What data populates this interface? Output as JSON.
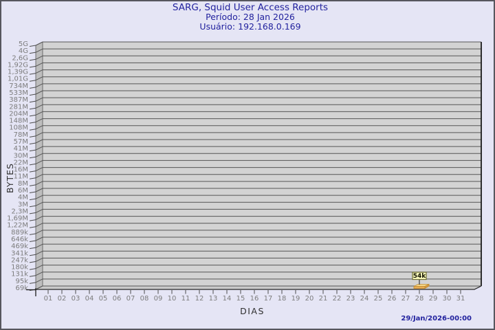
{
  "header": {
    "title": "SARG, Squid User Access Reports",
    "period_label": "Período: 28 Jan 2026",
    "user_label": "Usuário: 192.168.0.169"
  },
  "footer": {
    "timestamp": "29/Jan/2026-00:00"
  },
  "colors": {
    "background": "#e5e5f5",
    "border": "#56565e",
    "title_text": "#22229e",
    "plot_bg": "#d3d3d3",
    "wall": "#bdbdbd",
    "floor": "#cacaca",
    "gridline": "#555555",
    "axis_label": "#7c7c7c",
    "bar_top": "#f6d98a",
    "bar_front": "#e9ae55",
    "bar_side": "#d89a40",
    "bar_outline": "#c08a2e",
    "point_label_bg": "#fbfbbc",
    "point_label_border": "#6e6e34"
  },
  "chart_data": {
    "type": "bar",
    "title": "SARG, Squid User Access Reports",
    "subtitle": "Período: 28 Jan 2026",
    "user": "Usuário: 192.168.0.169",
    "xlabel": "DIAS",
    "ylabel": "BYTES",
    "scale": "logarithmic",
    "grid": true,
    "style": "3d-bar",
    "y_axis_labels_top_to_bottom": [
      "5G",
      "4G",
      "2,6G",
      "1,92G",
      "1,39G",
      "1,01G",
      "734M",
      "533M",
      "387M",
      "281M",
      "204M",
      "148M",
      "108M",
      "78M",
      "57M",
      "41M",
      "30M",
      "22M",
      "16M",
      "11M",
      "8M",
      "6M",
      "4M",
      "3M",
      "2,3M",
      "1,69M",
      "1,22M",
      "889k",
      "646k",
      "469k",
      "341k",
      "247k",
      "180k",
      "131k",
      "95k",
      "69k"
    ],
    "x_labels": [
      "01",
      "02",
      "03",
      "04",
      "05",
      "06",
      "07",
      "08",
      "09",
      "10",
      "11",
      "12",
      "13",
      "14",
      "15",
      "16",
      "17",
      "18",
      "19",
      "20",
      "21",
      "22",
      "23",
      "24",
      "25",
      "26",
      "27",
      "28",
      "29",
      "30",
      "31"
    ],
    "series": [
      {
        "name": "192.168.0.169",
        "points": [
          {
            "x": "28",
            "label": "54k",
            "value_bytes": 54000
          }
        ]
      }
    ]
  }
}
